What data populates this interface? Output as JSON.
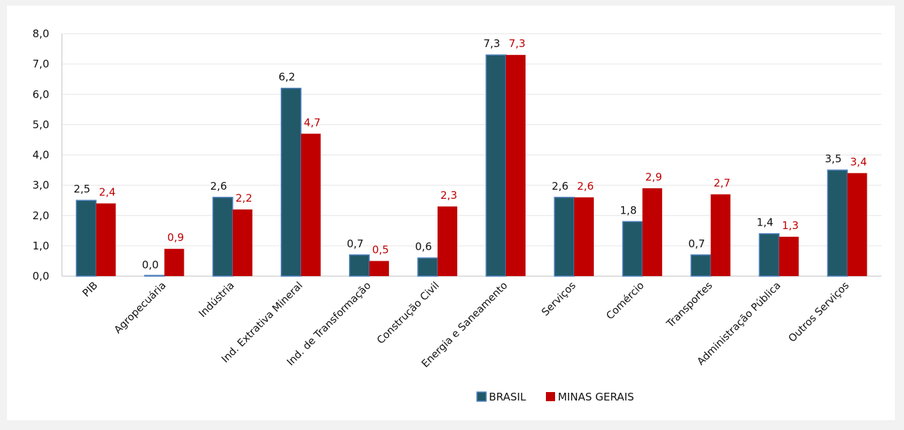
{
  "chart_data": {
    "type": "bar",
    "title": "",
    "xlabel": "",
    "ylabel": "",
    "ylim": [
      0,
      8
    ],
    "yticks": [
      "0,0",
      "1,0",
      "2,0",
      "3,0",
      "4,0",
      "5,0",
      "6,0",
      "7,0",
      "8,0"
    ],
    "grid": true,
    "legend_position": "bottom-center",
    "categories": [
      "PIB",
      "Agropecuária",
      "Indústria",
      "Ind. Extrativa Mineral",
      "Ind. de Transformação",
      "Construção Civil",
      "Energia e Saneamento",
      "Serviços",
      "Comércio",
      "Transportes",
      "Administração Pública",
      "Outros Serviços"
    ],
    "series": [
      {
        "name": "BRASIL",
        "color": "#215968",
        "label_color": "#111111",
        "values": [
          2.5,
          0.0,
          2.6,
          6.2,
          0.7,
          0.6,
          7.3,
          2.6,
          1.8,
          0.7,
          1.4,
          3.5
        ],
        "labels": [
          "2,5",
          "0,0",
          "2,6",
          "6,2",
          "0,7",
          "0,6",
          "7,3",
          "2,6",
          "1,8",
          "0,7",
          "1,4",
          "3,5"
        ]
      },
      {
        "name": "MINAS GERAIS",
        "color": "#c00000",
        "label_color": "#c00000",
        "values": [
          2.4,
          0.9,
          2.2,
          4.7,
          0.5,
          2.3,
          7.3,
          2.6,
          2.9,
          2.7,
          1.3,
          3.4
        ],
        "labels": [
          "2,4",
          "0,9",
          "2,2",
          "4,7",
          "0,5",
          "2,3",
          "7,3",
          "2,6",
          "2,9",
          "2,7",
          "1,3",
          "3,4"
        ]
      }
    ]
  }
}
